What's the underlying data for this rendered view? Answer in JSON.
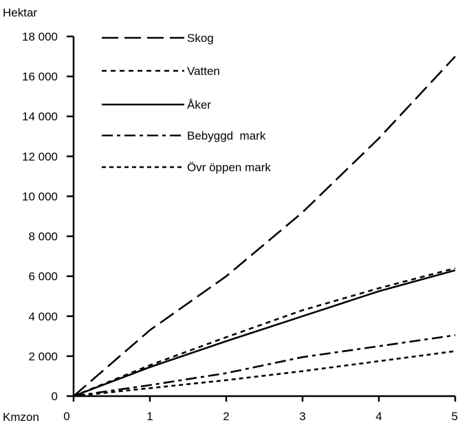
{
  "chart_data": {
    "type": "line",
    "ylabel": "Hektar",
    "xlabel": "Kmzon",
    "x": [
      0,
      1,
      2,
      3,
      4,
      5
    ],
    "xlim": [
      0,
      5
    ],
    "ylim": [
      0,
      18000
    ],
    "x_ticks": [
      "0",
      "1",
      "2",
      "3",
      "4",
      "5"
    ],
    "y_ticks": [
      "0",
      "2 000",
      "4 000",
      "6 000",
      "8 000",
      "10 000",
      "12 000",
      "14 000",
      "16 000",
      "18 000"
    ],
    "y_tick_values": [
      0,
      2000,
      4000,
      6000,
      8000,
      10000,
      12000,
      14000,
      16000,
      18000
    ],
    "grid": false,
    "legend_position": "top-left",
    "series": [
      {
        "name": "Skog",
        "dash": "long-dash",
        "values": [
          0,
          3300,
          6000,
          9200,
          12900,
          17000
        ]
      },
      {
        "name": "Vatten",
        "dash": "short-dash",
        "values": [
          0,
          1550,
          2950,
          4300,
          5400,
          6400
        ]
      },
      {
        "name": "Åker",
        "dash": "solid",
        "values": [
          0,
          1450,
          2750,
          4000,
          5250,
          6300
        ]
      },
      {
        "name": "Bebyggd  mark",
        "dash": "dash-dot",
        "values": [
          0,
          550,
          1150,
          1950,
          2500,
          3050
        ]
      },
      {
        "name": "Övr öppen mark",
        "dash": "dotted",
        "values": [
          0,
          400,
          800,
          1250,
          1750,
          2250
        ]
      }
    ]
  }
}
